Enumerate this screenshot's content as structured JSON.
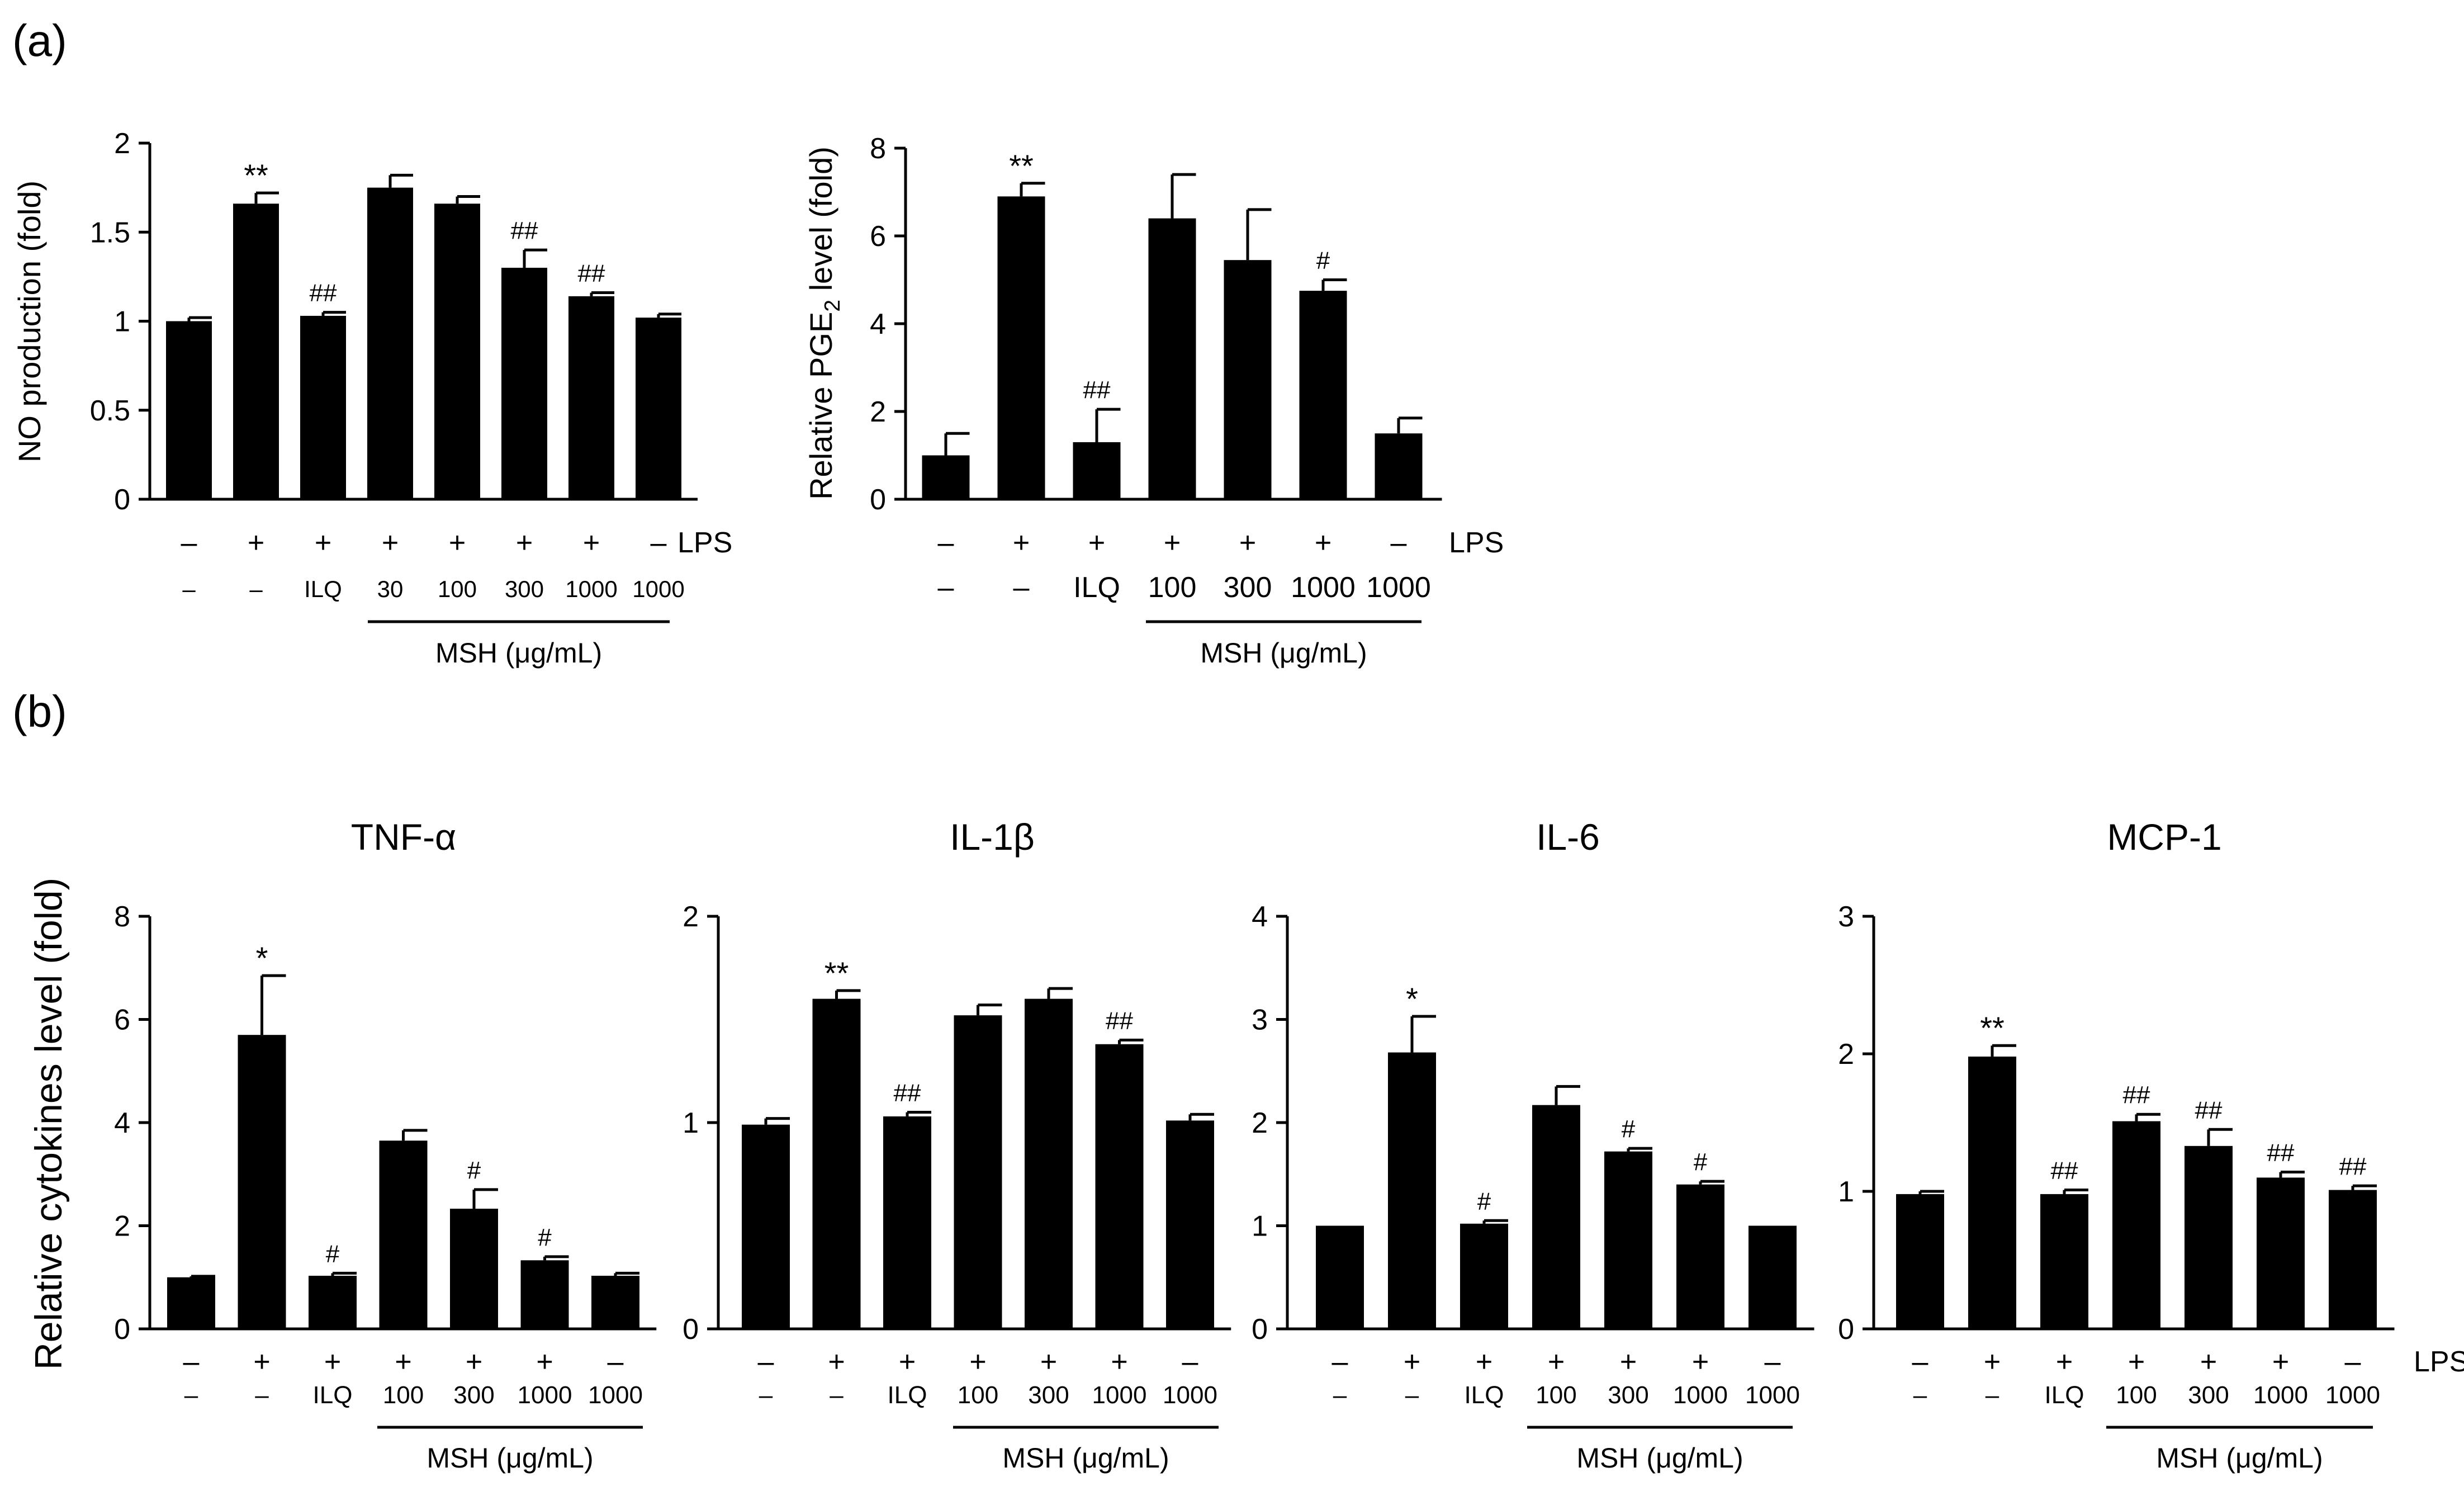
{
  "panel_labels": {
    "a": "(a)",
    "b": "(b)"
  },
  "shared": {
    "lps_label": "LPS",
    "msh_label": "MSH (μg/mL)",
    "plus": "+",
    "minus": "–",
    "ilq": "ILQ"
  },
  "colors": {
    "bar": "#000000",
    "axis": "#000000",
    "background": "#ffffff"
  },
  "chart_data": [
    {
      "id": "no",
      "type": "bar",
      "title": "",
      "ylabel": "NO production (fold)",
      "ylim": [
        0,
        2
      ],
      "yticks": [
        0,
        0.5,
        1,
        1.5,
        2
      ],
      "ytick_labels": [
        "0",
        "0.5",
        "1",
        "1.5",
        "2"
      ],
      "lps": [
        "–",
        "+",
        "+",
        "+",
        "+",
        "+",
        "+",
        "–"
      ],
      "treatment": [
        "–",
        "–",
        "ILQ",
        "30",
        "100",
        "300",
        "1000",
        "1000"
      ],
      "values": [
        1.0,
        1.66,
        1.03,
        1.75,
        1.66,
        1.3,
        1.14,
        1.02
      ],
      "errors": [
        0.02,
        0.06,
        0.02,
        0.07,
        0.04,
        0.1,
        0.02,
        0.02
      ],
      "annotations": [
        "",
        "**",
        "##",
        "",
        "",
        "##",
        "##",
        ""
      ]
    },
    {
      "id": "pge2",
      "type": "bar",
      "title": "",
      "ylabel": "Relative PGE2 level (fold)",
      "ylabel_main": "Relative PGE",
      "ylabel_sub": "2",
      "ylabel_tail": " level (fold)",
      "ylim": [
        0,
        8
      ],
      "yticks": [
        0,
        2,
        4,
        6,
        8
      ],
      "ytick_labels": [
        "0",
        "2",
        "4",
        "6",
        "8"
      ],
      "lps": [
        "–",
        "+",
        "+",
        "+",
        "+",
        "+",
        "–"
      ],
      "treatment": [
        "–",
        "–",
        "ILQ",
        "100",
        "300",
        "1000",
        "1000"
      ],
      "values": [
        1.0,
        6.9,
        1.3,
        6.4,
        5.45,
        4.75,
        1.5
      ],
      "errors": [
        0.5,
        0.3,
        0.75,
        1.0,
        1.15,
        0.25,
        0.35
      ],
      "annotations": [
        "",
        "**",
        "##",
        "",
        "",
        "#",
        ""
      ]
    },
    {
      "id": "tnf",
      "type": "bar",
      "title": "TNF-α",
      "ylabel": "Relative cytokines level (fold)",
      "ylim": [
        0,
        8
      ],
      "yticks": [
        0,
        2,
        4,
        6,
        8
      ],
      "ytick_labels": [
        "0",
        "2",
        "4",
        "6",
        "8"
      ],
      "lps": [
        "–",
        "+",
        "+",
        "+",
        "+",
        "+",
        "–"
      ],
      "treatment": [
        "–",
        "–",
        "ILQ",
        "100",
        "300",
        "1000",
        "1000"
      ],
      "values": [
        1.0,
        5.7,
        1.03,
        3.65,
        2.33,
        1.33,
        1.03
      ],
      "errors": [
        0.02,
        1.15,
        0.05,
        0.2,
        0.37,
        0.07,
        0.05
      ],
      "annotations": [
        "",
        "*",
        "#",
        "",
        "#",
        "#",
        ""
      ]
    },
    {
      "id": "il1b",
      "type": "bar",
      "title": "IL-1β",
      "ylim": [
        0,
        2
      ],
      "yticks": [
        0,
        1,
        2
      ],
      "ytick_labels": [
        "0",
        "1",
        "2"
      ],
      "lps": [
        "–",
        "+",
        "+",
        "+",
        "+",
        "+",
        "–"
      ],
      "treatment": [
        "–",
        "–",
        "ILQ",
        "100",
        "300",
        "1000",
        "1000"
      ],
      "values": [
        0.99,
        1.6,
        1.03,
        1.52,
        1.6,
        1.38,
        1.01
      ],
      "errors": [
        0.03,
        0.04,
        0.02,
        0.05,
        0.05,
        0.02,
        0.03
      ],
      "annotations": [
        "",
        "**",
        "##",
        "",
        "",
        "##",
        ""
      ]
    },
    {
      "id": "il6",
      "type": "bar",
      "title": "IL-6",
      "ylim": [
        0,
        4
      ],
      "yticks": [
        0,
        1,
        2,
        3,
        4
      ],
      "ytick_labels": [
        "0",
        "1",
        "2",
        "3",
        "4"
      ],
      "lps": [
        "–",
        "+",
        "+",
        "+",
        "+",
        "+",
        "–"
      ],
      "treatment": [
        "–",
        "–",
        "ILQ",
        "100",
        "300",
        "1000",
        "1000"
      ],
      "values": [
        1.0,
        2.68,
        1.02,
        2.17,
        1.72,
        1.4,
        1.0
      ],
      "errors": [
        0.0,
        0.35,
        0.03,
        0.18,
        0.03,
        0.03,
        0.0
      ],
      "annotations": [
        "",
        "*",
        "#",
        "",
        "#",
        "#",
        ""
      ]
    },
    {
      "id": "mcp1",
      "type": "bar",
      "title": "MCP-1",
      "ylim": [
        0,
        3
      ],
      "yticks": [
        0,
        1,
        2,
        3
      ],
      "ytick_labels": [
        "0",
        "1",
        "2",
        "3"
      ],
      "lps": [
        "–",
        "+",
        "+",
        "+",
        "+",
        "+",
        "–"
      ],
      "treatment": [
        "–",
        "–",
        "ILQ",
        "100",
        "300",
        "1000",
        "1000"
      ],
      "values": [
        0.98,
        1.98,
        0.98,
        1.51,
        1.33,
        1.1,
        1.01
      ],
      "errors": [
        0.02,
        0.08,
        0.03,
        0.05,
        0.12,
        0.04,
        0.03
      ],
      "annotations": [
        "",
        "**",
        "##",
        "##",
        "##",
        "##",
        "##"
      ]
    }
  ]
}
